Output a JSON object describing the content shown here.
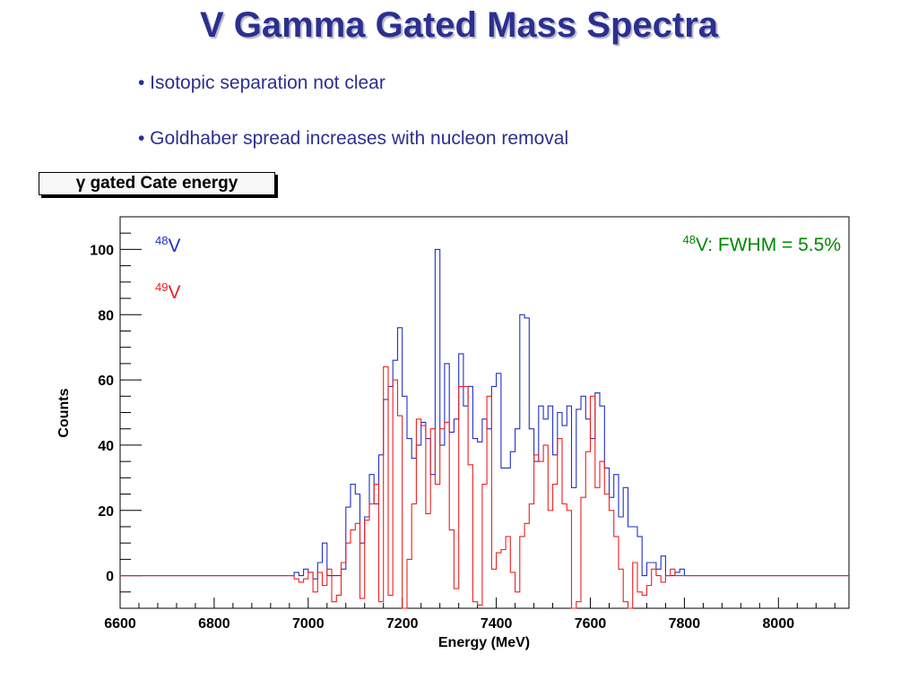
{
  "slide": {
    "title": "V Gamma Gated Mass Spectra",
    "bullets": [
      "• Isotopic separation not clear",
      "• Goldhaber spread increases with nucleon removal"
    ],
    "hist_title_symbol": "γ",
    "hist_title_text": "gated Cate energy"
  },
  "annotation": {
    "mass_number": "48",
    "text": "V: FWHM = 5.5%",
    "color": "#008800"
  },
  "chart_data": {
    "type": "histogram-step",
    "xlabel": "Energy (MeV)",
    "ylabel": "Counts",
    "xlim": [
      6600,
      8150
    ],
    "ylim": [
      -10,
      110
    ],
    "x_ticks": [
      6600,
      6800,
      7000,
      7200,
      7400,
      7600,
      7800,
      8000
    ],
    "y_ticks": [
      0,
      20,
      40,
      60,
      80,
      100
    ],
    "bin_width": 10,
    "series": [
      {
        "name_mass": "48",
        "name_symbol": "V",
        "color": "#2030c8",
        "points": [
          [
            6600,
            0
          ],
          [
            6960,
            0
          ],
          [
            6970,
            1
          ],
          [
            6980,
            0
          ],
          [
            6990,
            2
          ],
          [
            7000,
            1
          ],
          [
            7010,
            -1
          ],
          [
            7020,
            4
          ],
          [
            7030,
            10
          ],
          [
            7040,
            0
          ],
          [
            7050,
            0
          ],
          [
            7060,
            0
          ],
          [
            7070,
            2
          ],
          [
            7080,
            21
          ],
          [
            7090,
            28
          ],
          [
            7100,
            25
          ],
          [
            7110,
            10
          ],
          [
            7120,
            18
          ],
          [
            7130,
            31
          ],
          [
            7140,
            22
          ],
          [
            7150,
            37
          ],
          [
            7160,
            54
          ],
          [
            7170,
            58
          ],
          [
            7180,
            66
          ],
          [
            7190,
            76
          ],
          [
            7200,
            55
          ],
          [
            7210,
            42
          ],
          [
            7220,
            36
          ],
          [
            7230,
            40
          ],
          [
            7240,
            47
          ],
          [
            7250,
            42
          ],
          [
            7260,
            31
          ],
          [
            7270,
            100
          ],
          [
            7280,
            40
          ],
          [
            7290,
            65
          ],
          [
            7300,
            44
          ],
          [
            7310,
            48
          ],
          [
            7320,
            68
          ],
          [
            7330,
            52
          ],
          [
            7340,
            58
          ],
          [
            7350,
            42
          ],
          [
            7360,
            41
          ],
          [
            7370,
            48
          ],
          [
            7380,
            45
          ],
          [
            7390,
            58
          ],
          [
            7400,
            62
          ],
          [
            7410,
            33
          ],
          [
            7420,
            33
          ],
          [
            7430,
            38
          ],
          [
            7440,
            45
          ],
          [
            7450,
            80
          ],
          [
            7460,
            79
          ],
          [
            7470,
            45
          ],
          [
            7480,
            35
          ],
          [
            7490,
            52
          ],
          [
            7500,
            48
          ],
          [
            7510,
            52
          ],
          [
            7520,
            37
          ],
          [
            7530,
            50
          ],
          [
            7540,
            46
          ],
          [
            7550,
            52
          ],
          [
            7560,
            27
          ],
          [
            7570,
            51
          ],
          [
            7580,
            55
          ],
          [
            7590,
            48
          ],
          [
            7600,
            42
          ],
          [
            7610,
            56
          ],
          [
            7620,
            52
          ],
          [
            7630,
            33
          ],
          [
            7640,
            24
          ],
          [
            7650,
            31
          ],
          [
            7660,
            18
          ],
          [
            7670,
            27
          ],
          [
            7680,
            15
          ],
          [
            7690,
            15
          ],
          [
            7700,
            12
          ],
          [
            7710,
            0
          ],
          [
            7720,
            4
          ],
          [
            7730,
            4
          ],
          [
            7740,
            2
          ],
          [
            7750,
            6
          ],
          [
            7760,
            0
          ],
          [
            7770,
            0
          ],
          [
            7780,
            1
          ],
          [
            7790,
            2
          ],
          [
            7800,
            0
          ],
          [
            8150,
            0
          ]
        ]
      },
      {
        "name_mass": "49",
        "name_symbol": "V",
        "color": "#ee2020",
        "points": [
          [
            6600,
            0
          ],
          [
            6960,
            0
          ],
          [
            6970,
            -1
          ],
          [
            6980,
            -2
          ],
          [
            6990,
            -1
          ],
          [
            7000,
            1
          ],
          [
            7010,
            -5
          ],
          [
            7020,
            1
          ],
          [
            7030,
            -3
          ],
          [
            7040,
            2
          ],
          [
            7050,
            -8
          ],
          [
            7060,
            -6
          ],
          [
            7070,
            4
          ],
          [
            7080,
            10
          ],
          [
            7090,
            14
          ],
          [
            7100,
            16
          ],
          [
            7110,
            -7
          ],
          [
            7120,
            17
          ],
          [
            7130,
            22
          ],
          [
            7140,
            28
          ],
          [
            7150,
            -8
          ],
          [
            7160,
            64
          ],
          [
            7170,
            -6
          ],
          [
            7180,
            60
          ],
          [
            7190,
            49
          ],
          [
            7200,
            -10
          ],
          [
            7210,
            5
          ],
          [
            7220,
            22
          ],
          [
            7230,
            48
          ],
          [
            7240,
            46
          ],
          [
            7250,
            19
          ],
          [
            7260,
            45
          ],
          [
            7270,
            28
          ],
          [
            7280,
            45
          ],
          [
            7290,
            47
          ],
          [
            7300,
            14
          ],
          [
            7310,
            -4
          ],
          [
            7320,
            58
          ],
          [
            7330,
            58
          ],
          [
            7340,
            34
          ],
          [
            7350,
            -8
          ],
          [
            7360,
            -9
          ],
          [
            7370,
            28
          ],
          [
            7380,
            55
          ],
          [
            7390,
            2
          ],
          [
            7400,
            7
          ],
          [
            7410,
            8
          ],
          [
            7420,
            12
          ],
          [
            7430,
            1
          ],
          [
            7440,
            -5
          ],
          [
            7450,
            12
          ],
          [
            7460,
            16
          ],
          [
            7470,
            22
          ],
          [
            7480,
            37
          ],
          [
            7490,
            35
          ],
          [
            7500,
            40
          ],
          [
            7510,
            20
          ],
          [
            7520,
            28
          ],
          [
            7530,
            42
          ],
          [
            7540,
            22
          ],
          [
            7550,
            20
          ],
          [
            7560,
            -10
          ],
          [
            7570,
            -8
          ],
          [
            7580,
            24
          ],
          [
            7590,
            38
          ],
          [
            7600,
            55
          ],
          [
            7610,
            27
          ],
          [
            7620,
            35
          ],
          [
            7630,
            25
          ],
          [
            7640,
            20
          ],
          [
            7650,
            12
          ],
          [
            7660,
            2
          ],
          [
            7670,
            -8
          ],
          [
            7680,
            -10
          ],
          [
            7690,
            4
          ],
          [
            7700,
            -5
          ],
          [
            7710,
            -6
          ],
          [
            7720,
            -3
          ],
          [
            7730,
            2
          ],
          [
            7740,
            0
          ],
          [
            7750,
            -2
          ],
          [
            7760,
            0
          ],
          [
            7770,
            2
          ],
          [
            7780,
            0
          ],
          [
            8150,
            0
          ]
        ]
      }
    ]
  }
}
